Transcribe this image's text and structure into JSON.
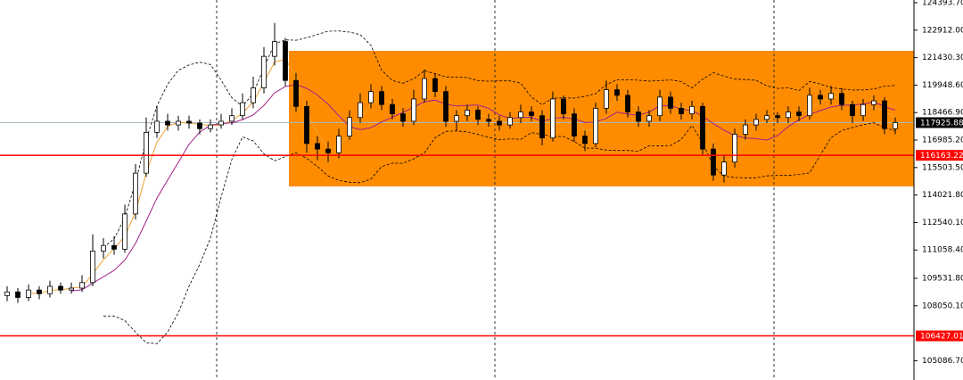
{
  "chart_data": {
    "type": "candlestick",
    "ylim": [
      104048,
      124538
    ],
    "yticks": [
      {
        "value": 124393.7,
        "label": "124393.70"
      },
      {
        "value": 122912,
        "label": "122912.00"
      },
      {
        "value": 121430.3,
        "label": "121430.30"
      },
      {
        "value": 119948.6,
        "label": "119948.60"
      },
      {
        "value": 118466.9,
        "label": "118466.90"
      },
      {
        "value": 116985.2,
        "label": "116985.20"
      },
      {
        "value": 115503.5,
        "label": "115503.50"
      },
      {
        "value": 114021.8,
        "label": "114021.80"
      },
      {
        "value": 112540.1,
        "label": "112540.10"
      },
      {
        "value": 111058.4,
        "label": "111058.40"
      },
      {
        "value": 109531.8,
        "label": "109531.80"
      },
      {
        "value": 108050.1,
        "label": "108050.10"
      },
      {
        "value": 105086.7,
        "label": "105086.70"
      }
    ],
    "current_price": 117925.88,
    "levels": [
      116163.22,
      106427.01
    ],
    "zone": {
      "high": 121796,
      "low": 114485,
      "color": "#ff8c00"
    },
    "level_color": "#ff0000",
    "candles": [
      [
        108600,
        109100,
        108300,
        108800
      ],
      [
        108800,
        109000,
        108200,
        108500
      ],
      [
        108500,
        109200,
        108300,
        108900
      ],
      [
        108900,
        109100,
        108400,
        108700
      ],
      [
        108700,
        109400,
        108500,
        109100
      ],
      [
        109100,
        109300,
        108700,
        108900
      ],
      [
        108900,
        109300,
        108700,
        109000
      ],
      [
        109000,
        109700,
        108800,
        109300
      ],
      [
        109300,
        111900,
        109100,
        111000
      ],
      [
        111000,
        111700,
        110600,
        111300
      ],
      [
        111300,
        111800,
        110800,
        111100
      ],
      [
        111100,
        113500,
        110900,
        113000
      ],
      [
        113000,
        115700,
        112700,
        115200
      ],
      [
        115200,
        118200,
        115000,
        117400
      ],
      [
        117400,
        118800,
        117100,
        118000
      ],
      [
        118000,
        118400,
        117500,
        117800
      ],
      [
        117800,
        118300,
        117500,
        118000
      ],
      [
        118000,
        118300,
        117600,
        117900
      ],
      [
        117900,
        118100,
        117300,
        117600
      ],
      [
        117600,
        118100,
        117400,
        117800
      ],
      [
        117800,
        118400,
        117600,
        118000
      ],
      [
        118000,
        118700,
        117800,
        118300
      ],
      [
        118300,
        119500,
        118100,
        119000
      ],
      [
        119000,
        120400,
        118700,
        119800
      ],
      [
        119800,
        122000,
        119500,
        121500
      ],
      [
        121500,
        123300,
        121000,
        122300
      ],
      [
        122300,
        122500,
        119900,
        120200
      ],
      [
        120200,
        120600,
        118500,
        118800
      ],
      [
        118800,
        119100,
        116300,
        116800
      ],
      [
        116800,
        117200,
        115900,
        116500
      ],
      [
        116500,
        116900,
        115800,
        116300
      ],
      [
        116300,
        117600,
        116000,
        117200
      ],
      [
        117200,
        118600,
        117000,
        118200
      ],
      [
        118200,
        119500,
        117900,
        119000
      ],
      [
        119000,
        120000,
        118700,
        119600
      ],
      [
        119600,
        119900,
        118600,
        118900
      ],
      [
        118900,
        119200,
        118100,
        118400
      ],
      [
        118400,
        118700,
        117700,
        118000
      ],
      [
        118000,
        119700,
        117800,
        119200
      ],
      [
        119200,
        120800,
        119000,
        120300
      ],
      [
        120300,
        120600,
        119300,
        119600
      ],
      [
        119600,
        119900,
        117700,
        118000
      ],
      [
        118000,
        118600,
        117500,
        118300
      ],
      [
        118300,
        118900,
        118000,
        118600
      ],
      [
        118600,
        118800,
        117800,
        118100
      ],
      [
        118100,
        118400,
        117700,
        118000
      ],
      [
        118000,
        118300,
        117500,
        117800
      ],
      [
        117800,
        118500,
        117600,
        118200
      ],
      [
        118200,
        118900,
        117900,
        118500
      ],
      [
        118500,
        118800,
        118000,
        118300
      ],
      [
        118300,
        118600,
        116700,
        117100
      ],
      [
        117100,
        119600,
        116900,
        119200
      ],
      [
        119200,
        119400,
        118100,
        118400
      ],
      [
        118400,
        118700,
        116900,
        117200
      ],
      [
        117200,
        117500,
        116400,
        116800
      ],
      [
        116800,
        119000,
        116600,
        118700
      ],
      [
        118700,
        120200,
        118400,
        119700
      ],
      [
        119700,
        120000,
        119100,
        119400
      ],
      [
        119400,
        119700,
        118200,
        118500
      ],
      [
        118500,
        118800,
        117700,
        118000
      ],
      [
        118000,
        118600,
        117700,
        118300
      ],
      [
        118300,
        119700,
        118000,
        119300
      ],
      [
        119300,
        119600,
        118400,
        118700
      ],
      [
        118700,
        119000,
        118100,
        118400
      ],
      [
        118400,
        119100,
        118100,
        118800
      ],
      [
        118800,
        119000,
        116200,
        116500
      ],
      [
        116500,
        116800,
        114800,
        115100
      ],
      [
        115100,
        116200,
        114700,
        115800
      ],
      [
        115800,
        117600,
        115500,
        117300
      ],
      [
        117300,
        118100,
        117000,
        117800
      ],
      [
        117800,
        118400,
        117500,
        118100
      ],
      [
        118100,
        118600,
        117900,
        118300
      ],
      [
        118300,
        118500,
        117900,
        118200
      ],
      [
        118200,
        118800,
        117900,
        118500
      ],
      [
        118500,
        118800,
        118000,
        118300
      ],
      [
        118300,
        119800,
        118100,
        119400
      ],
      [
        119400,
        119700,
        118900,
        119200
      ],
      [
        119200,
        119900,
        118900,
        119500
      ],
      [
        119500,
        119800,
        118600,
        118900
      ],
      [
        118900,
        119100,
        117900,
        118300
      ],
      [
        118300,
        119200,
        118000,
        118900
      ],
      [
        118900,
        119400,
        118600,
        119100
      ],
      [
        119100,
        119300,
        117300,
        117600
      ],
      [
        117600,
        118200,
        117300,
        117925.88
      ]
    ]
  }
}
